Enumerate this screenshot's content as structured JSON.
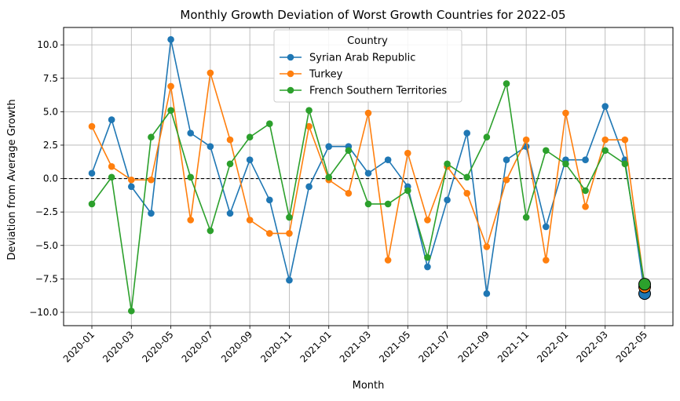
{
  "chart_data": {
    "type": "line",
    "title": "Monthly Growth Deviation of Worst Growth Countries for 2022-05",
    "xlabel": "Month",
    "ylabel": "Deviation from Average Growth",
    "months": [
      "2020-01",
      "2020-02",
      "2020-03",
      "2020-04",
      "2020-05",
      "2020-06",
      "2020-07",
      "2020-08",
      "2020-09",
      "2020-10",
      "2020-11",
      "2020-12",
      "2021-01",
      "2021-02",
      "2021-03",
      "2021-04",
      "2021-05",
      "2021-06",
      "2021-07",
      "2021-08",
      "2021-09",
      "2021-10",
      "2021-11",
      "2021-12",
      "2022-01",
      "2022-02",
      "2022-03",
      "2022-04",
      "2022-05"
    ],
    "xticks": [
      "2020-01",
      "2020-03",
      "2020-05",
      "2020-07",
      "2020-09",
      "2020-11",
      "2021-01",
      "2021-03",
      "2021-05",
      "2021-07",
      "2021-09",
      "2021-11",
      "2022-01",
      "2022-03",
      "2022-05"
    ],
    "yticks": [
      -10.0,
      -7.5,
      -5.0,
      -2.5,
      0.0,
      2.5,
      5.0,
      7.5,
      10.0
    ],
    "ytick_labels": [
      "−10.0",
      "−7.5",
      "−5.0",
      "−2.5",
      "0.0",
      "2.5",
      "5.0",
      "7.5",
      "10.0"
    ],
    "ylim": [
      -11.0,
      11.3
    ],
    "reference_line": 0,
    "grid": true,
    "legend": {
      "title": "Country",
      "placement": "upper center"
    },
    "highlight_last_point": true,
    "series": [
      {
        "name": "Syrian Arab Republic",
        "color": "#1f77b4",
        "values": [
          0.4,
          4.4,
          -0.6,
          -2.6,
          10.4,
          3.4,
          2.4,
          -2.6,
          1.4,
          -1.6,
          -7.6,
          -0.6,
          2.4,
          2.4,
          0.4,
          1.4,
          -0.6,
          -6.6,
          -1.6,
          3.4,
          -8.6,
          1.4,
          2.4,
          -3.6,
          1.4,
          1.4,
          5.4,
          1.4,
          -8.6
        ]
      },
      {
        "name": "Turkey",
        "color": "#ff7f0e",
        "values": [
          3.9,
          0.9,
          -0.1,
          -0.1,
          6.9,
          -3.1,
          7.9,
          2.9,
          -3.1,
          -4.1,
          -4.1,
          3.9,
          -0.1,
          -1.1,
          4.9,
          -6.1,
          1.9,
          -3.1,
          0.9,
          -1.1,
          -5.1,
          -0.1,
          2.9,
          -6.1,
          4.9,
          -2.1,
          2.9,
          2.9,
          -8.1
        ]
      },
      {
        "name": "French Southern Territories",
        "color": "#2ca02c",
        "values": [
          -1.9,
          0.1,
          -9.9,
          3.1,
          5.1,
          0.1,
          -3.9,
          1.1,
          3.1,
          4.1,
          -2.9,
          5.1,
          0.1,
          2.1,
          -1.9,
          -1.9,
          -0.9,
          -5.9,
          1.1,
          0.1,
          3.1,
          7.1,
          -2.9,
          2.1,
          1.1,
          -0.9,
          2.1,
          1.1,
          -7.9
        ]
      }
    ]
  }
}
